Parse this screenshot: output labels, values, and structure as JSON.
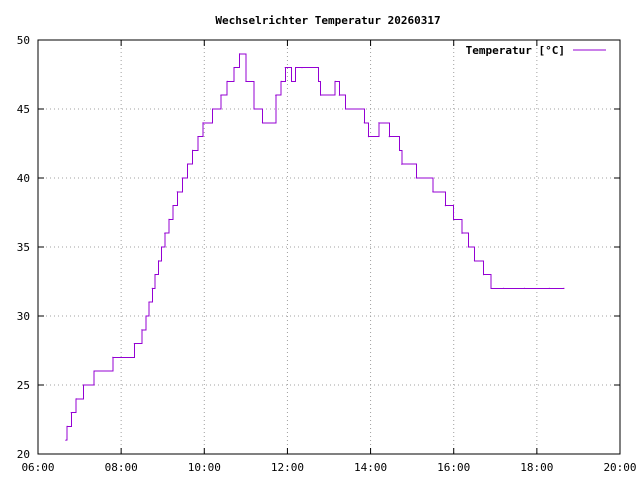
{
  "chart_data": {
    "type": "line",
    "title": "Wechselrichter Temperatur 20260317",
    "xlabel": "",
    "ylabel": "",
    "x_unit": "time of day (hours)",
    "xlim": [
      6,
      20
    ],
    "ylim": [
      20,
      50
    ],
    "x_ticks": [
      {
        "value": 6,
        "label": "06:00"
      },
      {
        "value": 8,
        "label": "08:00"
      },
      {
        "value": 10,
        "label": "10:00"
      },
      {
        "value": 12,
        "label": "12:00"
      },
      {
        "value": 14,
        "label": "14:00"
      },
      {
        "value": 16,
        "label": "16:00"
      },
      {
        "value": 18,
        "label": "18:00"
      },
      {
        "value": 20,
        "label": "20:00"
      }
    ],
    "y_ticks": [
      {
        "value": 20,
        "label": "20"
      },
      {
        "value": 25,
        "label": "25"
      },
      {
        "value": 30,
        "label": "30"
      },
      {
        "value": 35,
        "label": "35"
      },
      {
        "value": 40,
        "label": "40"
      },
      {
        "value": 45,
        "label": "45"
      },
      {
        "value": 50,
        "label": "50"
      }
    ],
    "grid": true,
    "legend": "top-right",
    "series": [
      {
        "name": "Temperatur [°C]",
        "color": "#9400d3",
        "step": true,
        "x": [
          6.67,
          6.7,
          6.8,
          6.92,
          7.1,
          7.35,
          7.8,
          8.32,
          8.5,
          8.6,
          8.67,
          8.75,
          8.82,
          8.9,
          8.97,
          9.05,
          9.15,
          9.25,
          9.35,
          9.47,
          9.6,
          9.72,
          9.85,
          9.97,
          10.2,
          10.4,
          10.55,
          10.72,
          10.85,
          11.0,
          11.2,
          11.4,
          11.72,
          11.85,
          11.95,
          12.0,
          12.1,
          12.2,
          12.35,
          12.75,
          12.8,
          13.15,
          13.25,
          13.4,
          13.85,
          13.95,
          14.2,
          14.45,
          14.7,
          14.75,
          15.1,
          15.5,
          15.8,
          16.0,
          16.2,
          16.35,
          16.5,
          16.72,
          16.9,
          17.2,
          17.7,
          18.3,
          18.65
        ],
        "y": [
          21,
          22,
          23,
          24,
          25,
          26,
          27,
          28,
          29,
          30,
          31,
          32,
          33,
          34,
          35,
          36,
          37,
          38,
          39,
          40,
          41,
          42,
          43,
          44,
          45,
          46,
          47,
          48,
          49,
          47,
          45,
          44,
          46,
          47,
          48,
          48,
          47,
          48,
          48,
          47,
          46,
          47,
          46,
          45,
          44,
          43,
          44,
          43,
          42,
          41,
          40,
          39,
          38,
          37,
          36,
          35,
          34,
          33,
          32,
          32,
          32,
          32,
          32
        ]
      }
    ]
  }
}
